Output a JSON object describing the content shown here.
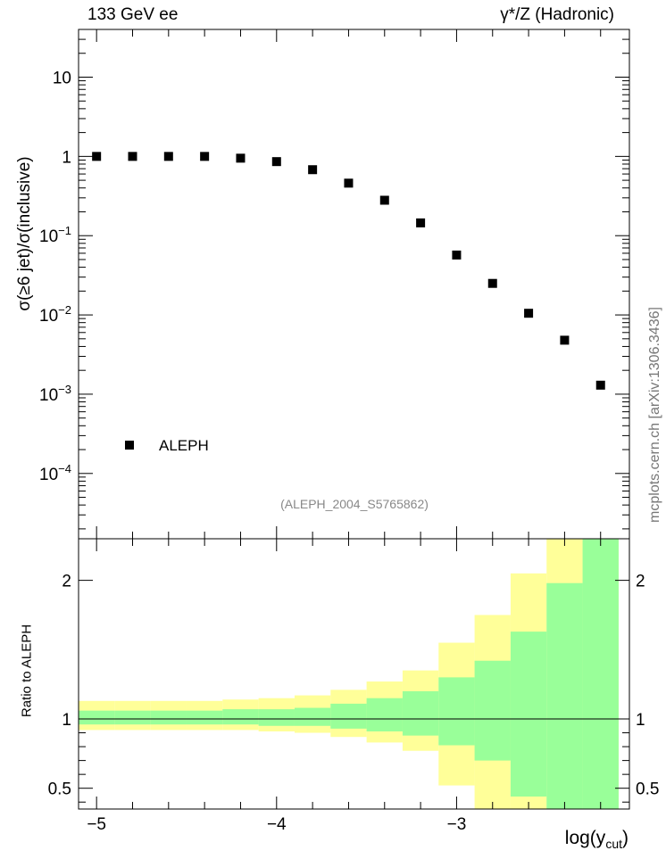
{
  "header": {
    "left_label": "133 GeV ee",
    "right_label": "γ*/Z (Hadronic)"
  },
  "side_text": "mcplots.cern.ch [arXiv:1306.3436]",
  "colors": {
    "band_outer": "#ffff99",
    "band_inner": "#99ff99",
    "markers": "#000000",
    "reference_text": "#888888"
  },
  "chart_data": [
    {
      "type": "scatter",
      "panel": "main",
      "title": "",
      "xlabel": "",
      "ylabel": "σ(≥6 jet)/σ(inclusive)",
      "yscale": "log",
      "xlim": [
        -5.1,
        -2.04
      ],
      "ylim": [
        1.5e-05,
        40
      ],
      "x_ticks": [
        -5,
        -4,
        -3
      ],
      "y_ticks": [
        {
          "value": 0.0001,
          "base": "10",
          "exp": "−4"
        },
        {
          "value": 0.001,
          "base": "10",
          "exp": "−3"
        },
        {
          "value": 0.01,
          "base": "10",
          "exp": "−2"
        },
        {
          "value": 0.1,
          "base": "10",
          "exp": "−1"
        },
        {
          "value": 1,
          "base": "1",
          "exp": ""
        },
        {
          "value": 10,
          "base": "10",
          "exp": ""
        }
      ],
      "series": [
        {
          "name": "ALEPH",
          "x": [
            -5.0,
            -4.8,
            -4.6,
            -4.4,
            -4.2,
            -4.0,
            -3.8,
            -3.6,
            -3.4,
            -3.2,
            -3.0,
            -2.8,
            -2.6,
            -2.4,
            -2.2
          ],
          "y": [
            1.0,
            1.0,
            1.0,
            1.0,
            0.95,
            0.86,
            0.68,
            0.46,
            0.28,
            0.145,
            0.057,
            0.025,
            0.0105,
            0.0048,
            0.0013
          ]
        }
      ],
      "legend": {
        "entries": [
          "ALEPH"
        ],
        "position": "bottom-left"
      },
      "annotation": "(ALEPH_2004_S5765862)"
    },
    {
      "type": "area",
      "panel": "ratio",
      "xlabel": "log(y_cut)",
      "xlabel_main": "log(y",
      "xlabel_sub": "cut",
      "xlabel_close": ")",
      "ylabel": "Ratio to ALEPH",
      "xlim": [
        -5.1,
        -2.04
      ],
      "ylim": [
        0.35,
        2.3
      ],
      "x_ticks": [
        {
          "value": -5,
          "label": "−5"
        },
        {
          "value": -4,
          "label": "−4"
        },
        {
          "value": -3,
          "label": "−3"
        }
      ],
      "y_ticks": [
        {
          "value": 0.5,
          "label": "0.5"
        },
        {
          "value": 1,
          "label": "1"
        },
        {
          "value": 2,
          "label": "2"
        }
      ],
      "reference_line": 1,
      "bin_edges": [
        -5.1,
        -4.9,
        -4.7,
        -4.5,
        -4.3,
        -4.1,
        -3.9,
        -3.7,
        -3.5,
        -3.3,
        -3.1,
        -2.9,
        -2.7,
        -2.5,
        -2.3,
        -2.1
      ],
      "outer_band": {
        "lower": [
          0.92,
          0.92,
          0.92,
          0.92,
          0.92,
          0.91,
          0.9,
          0.87,
          0.83,
          0.77,
          0.52,
          0.35,
          0.35,
          0.35,
          0.35
        ],
        "upper": [
          1.13,
          1.13,
          1.13,
          1.13,
          1.14,
          1.15,
          1.17,
          1.21,
          1.27,
          1.35,
          1.55,
          1.75,
          2.05,
          2.3,
          2.3
        ]
      },
      "inner_band": {
        "lower": [
          0.96,
          0.96,
          0.96,
          0.96,
          0.96,
          0.95,
          0.95,
          0.93,
          0.91,
          0.88,
          0.81,
          0.7,
          0.44,
          0.35,
          0.35
        ],
        "upper": [
          1.06,
          1.06,
          1.06,
          1.06,
          1.07,
          1.07,
          1.08,
          1.11,
          1.15,
          1.2,
          1.3,
          1.42,
          1.63,
          1.98,
          2.3
        ]
      }
    }
  ]
}
